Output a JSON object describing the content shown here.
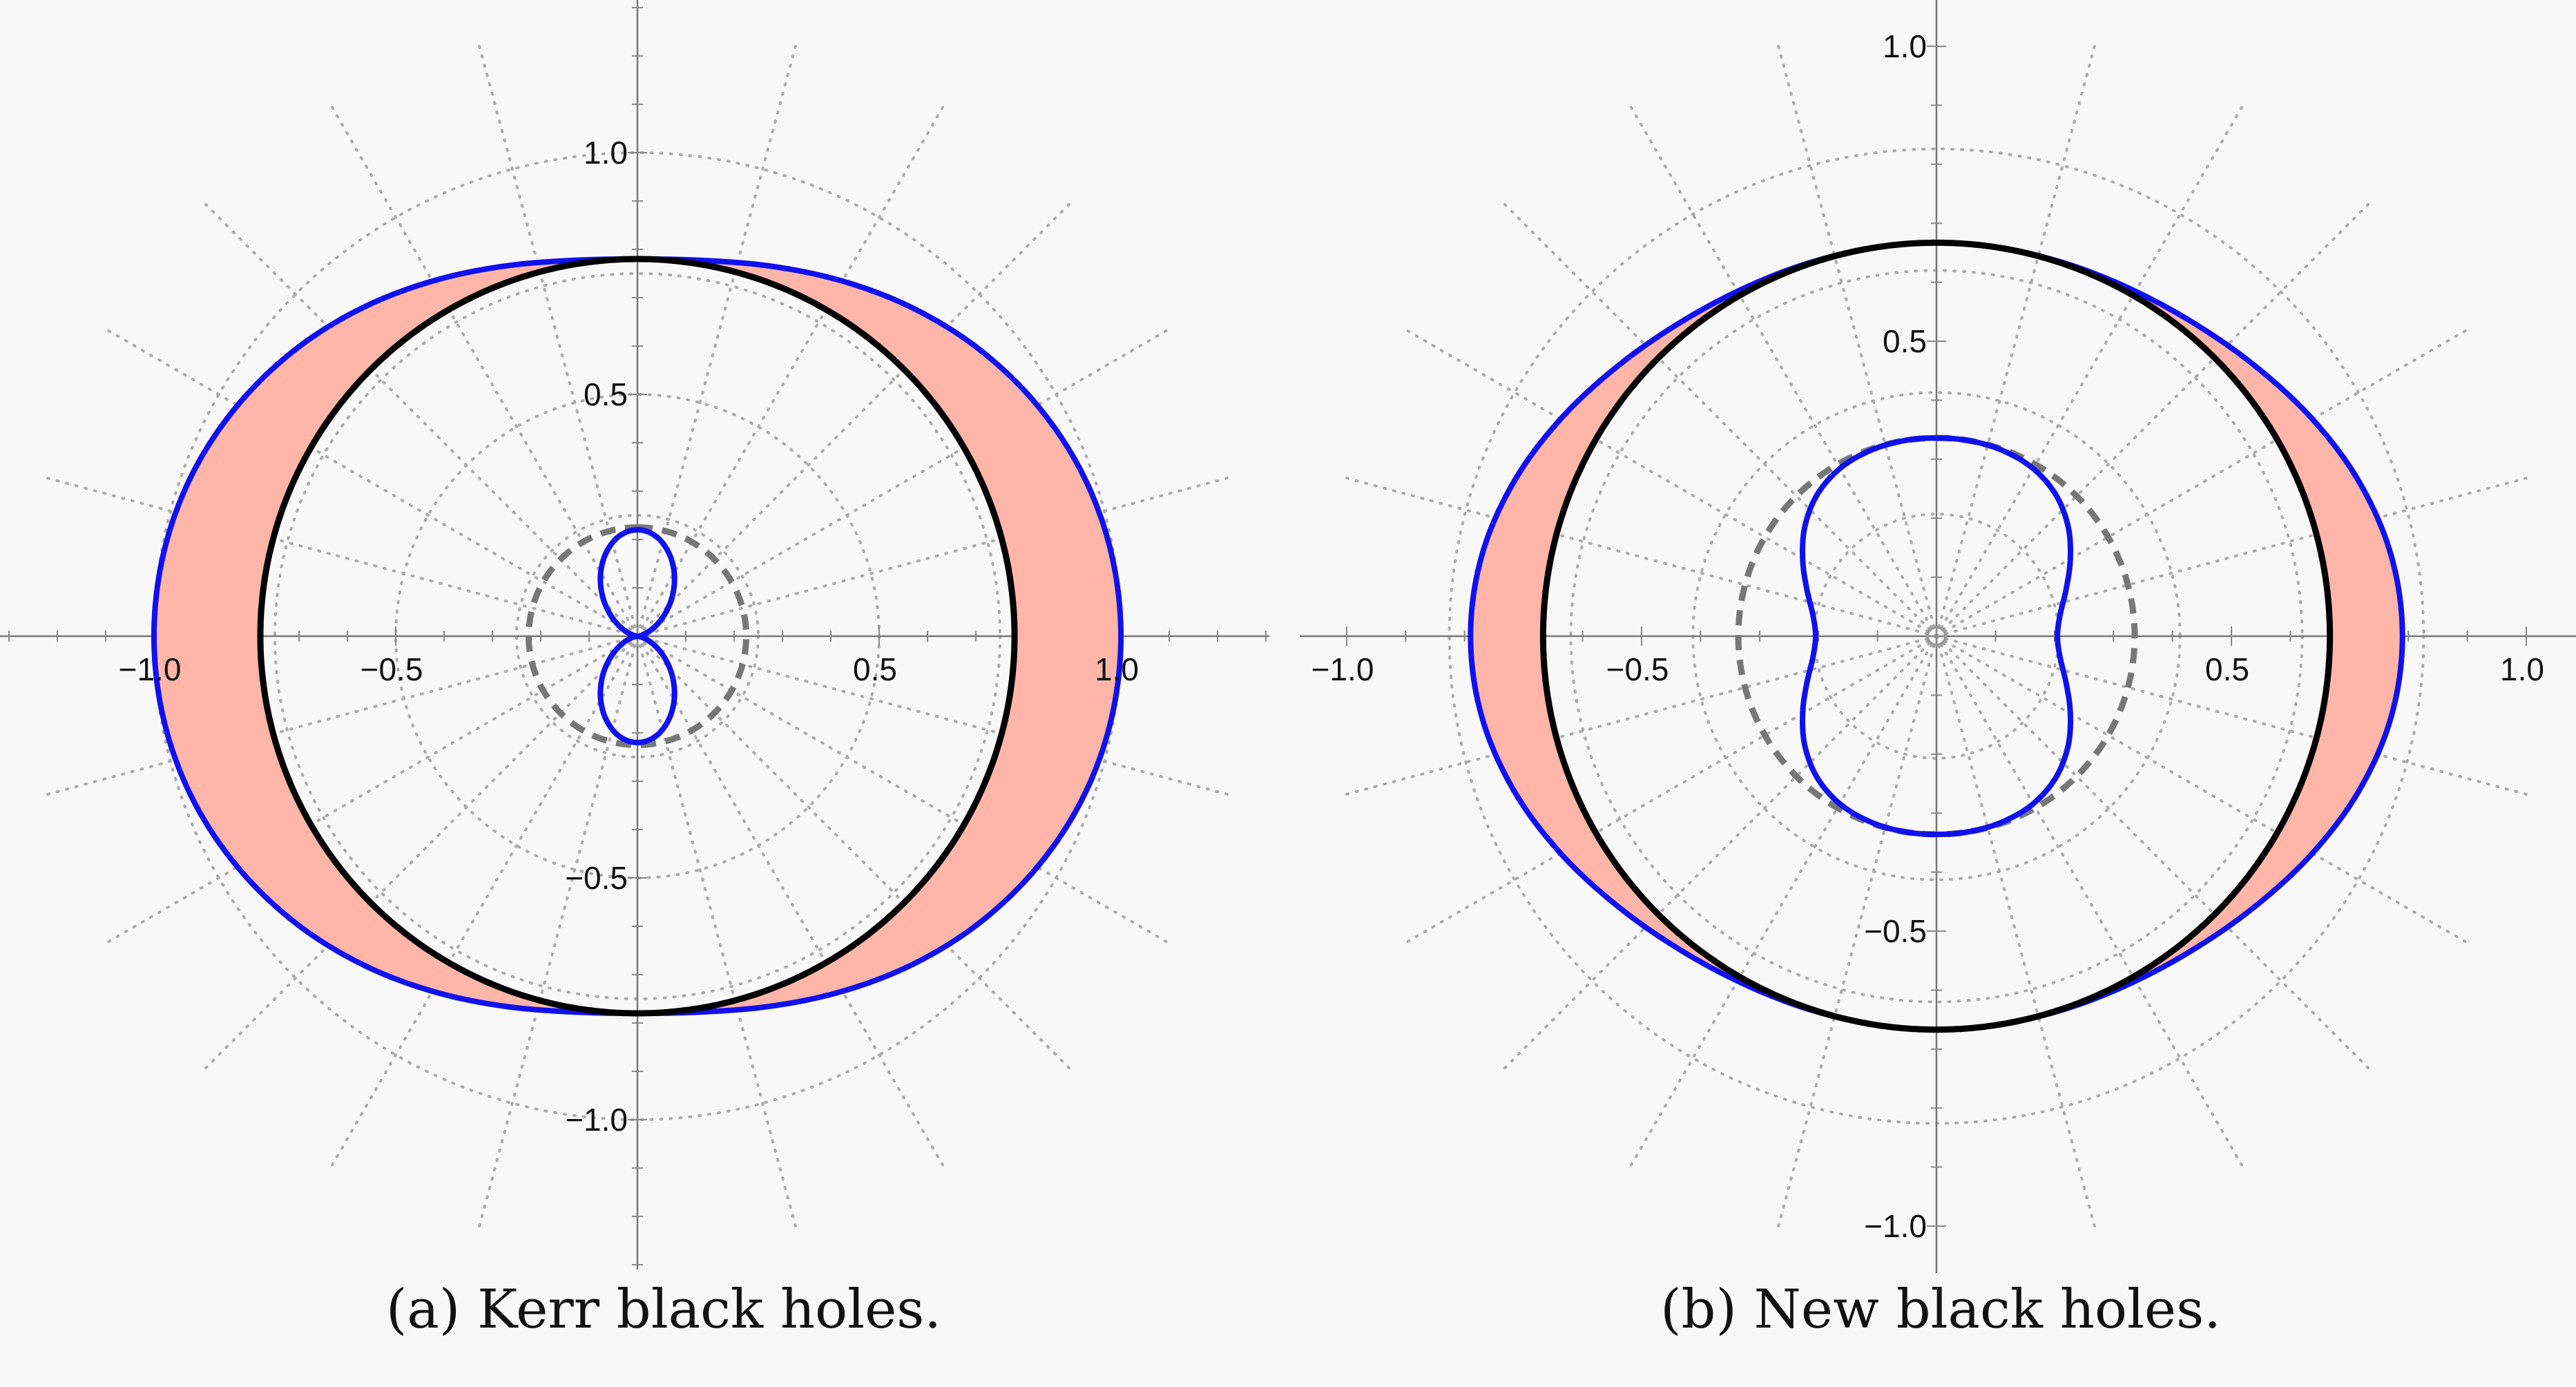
{
  "chart_data": [
    {
      "type": "line",
      "projection": "polar",
      "caption": "(a) Kerr black holes.",
      "angle_reference": "theta measured from vertical axis, samples every 10 degrees from 0 to 90, mirrored symmetric",
      "theta_deg": [
        0,
        10,
        20,
        30,
        40,
        50,
        60,
        70,
        80,
        90
      ],
      "xticks": [
        {
          "value": -1.0,
          "label": "−1.0"
        },
        {
          "value": -0.5,
          "label": "−0.5"
        },
        {
          "value": 0.5,
          "label": "0.5"
        },
        {
          "value": 1.0,
          "label": "1.0"
        }
      ],
      "yticks": [
        {
          "value": 1.0,
          "label": "1.0"
        },
        {
          "value": 0.5,
          "label": "0.5"
        },
        {
          "value": -0.5,
          "label": "−0.5"
        },
        {
          "value": -1.0,
          "label": "−1.0"
        }
      ],
      "grid": true,
      "series": [
        {
          "r": [
            0.78,
            0.789,
            0.814,
            0.848,
            0.886,
            0.923,
            0.955,
            0.98,
            0.995,
            1.0
          ],
          "color": "#1010f0",
          "style": "solid",
          "fill_to_next": "#ffb6a8"
        },
        {
          "r": [
            0.78,
            0.78,
            0.78,
            0.78,
            0.78,
            0.78,
            0.78,
            0.78,
            0.78,
            0.78
          ],
          "color": "#000000",
          "style": "solid"
        },
        {
          "r": [
            0.225,
            0.225,
            0.225,
            0.225,
            0.225,
            0.225,
            0.225,
            0.225,
            0.225,
            0.225
          ],
          "color": "#777777",
          "style": "dashed"
        },
        {
          "r": [
            0.22,
            0.211,
            0.186,
            0.152,
            0.114,
            0.077,
            0.045,
            0.021,
            0.005,
            0.0
          ],
          "color": "#1010f0",
          "style": "solid"
        }
      ]
    },
    {
      "type": "line",
      "projection": "polar",
      "caption": "(b) New black holes.",
      "angle_reference": "theta measured from vertical axis, samples every 10 degrees from 0 to 90, mirrored symmetric",
      "theta_deg": [
        0,
        10,
        20,
        30,
        40,
        50,
        60,
        70,
        80,
        90
      ],
      "xticks": [
        {
          "value": -1.0,
          "label": "−1.0"
        },
        {
          "value": -0.5,
          "label": "−0.5"
        },
        {
          "value": 0.5,
          "label": "0.5"
        },
        {
          "value": 1.0,
          "label": "1.0"
        }
      ],
      "yticks": [
        {
          "value": 1.0,
          "label": "1.0"
        },
        {
          "value": 0.5,
          "label": "0.5"
        },
        {
          "value": -0.5,
          "label": "−0.5"
        },
        {
          "value": -1.0,
          "label": "−1.0"
        }
      ],
      "grid": true,
      "series": [
        {
          "r": [
            0.667,
            0.667,
            0.669,
            0.675,
            0.688,
            0.709,
            0.736,
            0.763,
            0.783,
            0.79
          ],
          "color": "#1010f0",
          "style": "solid",
          "fill_to_next": "#ffb6a8"
        },
        {
          "r": [
            0.667,
            0.667,
            0.667,
            0.667,
            0.667,
            0.667,
            0.667,
            0.667,
            0.667,
            0.667
          ],
          "color": "#000000",
          "style": "solid"
        },
        {
          "r": [
            0.336,
            0.336,
            0.336,
            0.336,
            0.336,
            0.336,
            0.336,
            0.336,
            0.336,
            0.336
          ],
          "color": "#777777",
          "style": "dashed"
        },
        {
          "r": [
            0.336,
            0.336,
            0.334,
            0.328,
            0.314,
            0.291,
            0.262,
            0.234,
            0.213,
            0.205
          ],
          "color": "#1010f0",
          "style": "solid"
        }
      ]
    }
  ]
}
